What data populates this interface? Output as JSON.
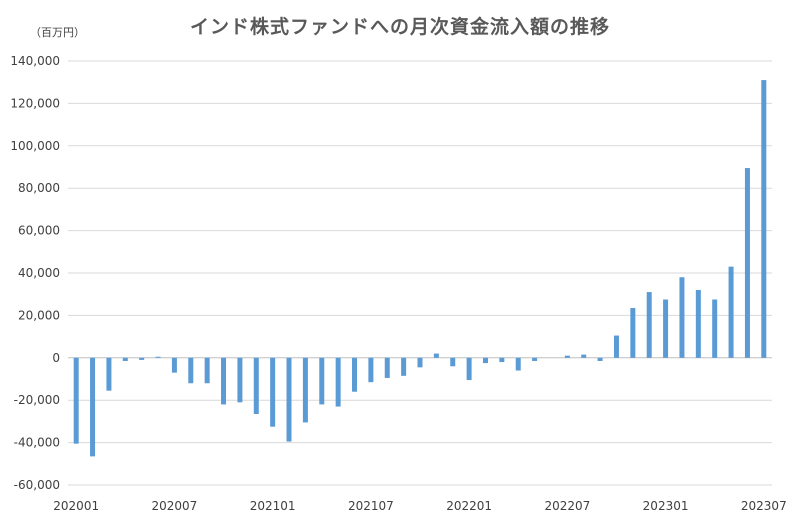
{
  "chart_data": {
    "type": "bar",
    "title": "インド株式ファンドへの月次資金流入額の推移",
    "unit_label": "（百万円）",
    "xlabel": "",
    "ylabel": "",
    "ylim": [
      -60000,
      140000
    ],
    "yticks": [
      "-60,000",
      "-40,000",
      "-20,000",
      "0",
      "20,000",
      "40,000",
      "60,000",
      "80,000",
      "100,000",
      "120,000",
      "140,000"
    ],
    "ytick_values": [
      -60000,
      -40000,
      -20000,
      0,
      20000,
      40000,
      60000,
      80000,
      100000,
      120000,
      140000
    ],
    "grid": true,
    "legend": "none",
    "bar_color": "#5b9bd5",
    "categories": [
      "202001",
      "202002",
      "202003",
      "202004",
      "202005",
      "202006",
      "202007",
      "202008",
      "202009",
      "202010",
      "202011",
      "202012",
      "202101",
      "202102",
      "202103",
      "202104",
      "202105",
      "202106",
      "202107",
      "202108",
      "202109",
      "202110",
      "202111",
      "202112",
      "202201",
      "202202",
      "202203",
      "202204",
      "202205",
      "202206",
      "202207",
      "202208",
      "202209",
      "202210",
      "202211",
      "202212",
      "202301",
      "202302",
      "202303",
      "202304",
      "202305",
      "202306",
      "202307"
    ],
    "xtick_labels": [
      "202001",
      "202007",
      "202101",
      "202107",
      "202201",
      "202207",
      "202301",
      "202307"
    ],
    "values": [
      -40500,
      -46500,
      -15500,
      -1500,
      -1000,
      500,
      -7000,
      -12000,
      -12000,
      -22000,
      -21000,
      -26500,
      -32500,
      -39500,
      -30500,
      -22000,
      -23000,
      -16000,
      -11500,
      -9500,
      -8500,
      -4500,
      2000,
      -4000,
      -10500,
      -2500,
      -2000,
      -6000,
      -1500,
      0,
      1000,
      1500,
      -1500,
      10500,
      23500,
      31000,
      27500,
      38000,
      32000,
      27500,
      43000,
      89500,
      131000
    ]
  }
}
